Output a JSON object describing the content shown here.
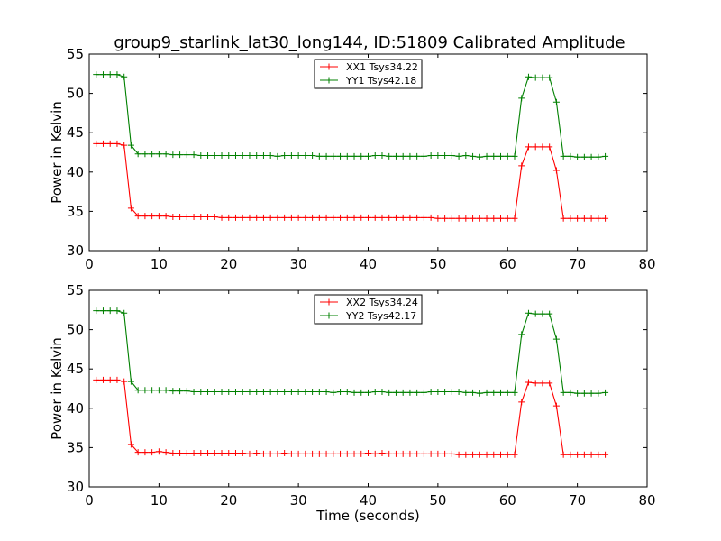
{
  "figure": {
    "title": "group9_starlink_lat30_long144, ID:51809 Calibrated Amplitude"
  },
  "colors": {
    "series1": "#ff0000",
    "series2": "#008000",
    "axes": "#000000",
    "background": "#ffffff"
  },
  "chart_data": [
    {
      "type": "line",
      "xlabel": "",
      "ylabel": "Power in Kelvin",
      "xlim": [
        0,
        80
      ],
      "ylim": [
        30,
        55
      ],
      "xticks": [
        0,
        10,
        20,
        30,
        40,
        50,
        60,
        70,
        80
      ],
      "yticks": [
        30,
        35,
        40,
        45,
        50,
        55
      ],
      "grid": false,
      "marker": "+",
      "legend_position": "top-center",
      "x": [
        1,
        2,
        3,
        4,
        5,
        6,
        7,
        8,
        9,
        10,
        11,
        12,
        13,
        14,
        15,
        16,
        17,
        18,
        19,
        20,
        21,
        22,
        23,
        24,
        25,
        26,
        27,
        28,
        29,
        30,
        31,
        32,
        33,
        34,
        35,
        36,
        37,
        38,
        39,
        40,
        41,
        42,
        43,
        44,
        45,
        46,
        47,
        48,
        49,
        50,
        51,
        52,
        53,
        54,
        55,
        56,
        57,
        58,
        59,
        60,
        61,
        62,
        63,
        64,
        65,
        66,
        67,
        68,
        69,
        70,
        71,
        72,
        73,
        74
      ],
      "series": [
        {
          "name": "XX1 Tsys34.22",
          "color": "#ff0000",
          "values": [
            43.6,
            43.6,
            43.6,
            43.6,
            43.4,
            35.4,
            34.4,
            34.4,
            34.4,
            34.4,
            34.4,
            34.3,
            34.3,
            34.3,
            34.3,
            34.3,
            34.3,
            34.3,
            34.2,
            34.2,
            34.2,
            34.2,
            34.2,
            34.2,
            34.2,
            34.2,
            34.2,
            34.2,
            34.2,
            34.2,
            34.2,
            34.2,
            34.2,
            34.2,
            34.2,
            34.2,
            34.2,
            34.2,
            34.2,
            34.2,
            34.2,
            34.2,
            34.2,
            34.2,
            34.2,
            34.2,
            34.2,
            34.2,
            34.2,
            34.1,
            34.1,
            34.1,
            34.1,
            34.1,
            34.1,
            34.1,
            34.1,
            34.1,
            34.1,
            34.1,
            34.1,
            40.8,
            43.2,
            43.2,
            43.2,
            43.2,
            40.2,
            34.1,
            34.1,
            34.1,
            34.1,
            34.1,
            34.1,
            34.1
          ]
        },
        {
          "name": "YY1 Tsys42.18",
          "color": "#008000",
          "values": [
            52.4,
            52.4,
            52.4,
            52.4,
            52.1,
            43.4,
            42.3,
            42.3,
            42.3,
            42.3,
            42.3,
            42.2,
            42.2,
            42.2,
            42.2,
            42.1,
            42.1,
            42.1,
            42.1,
            42.1,
            42.1,
            42.1,
            42.1,
            42.1,
            42.1,
            42.1,
            42.0,
            42.1,
            42.1,
            42.1,
            42.1,
            42.1,
            42.0,
            42.0,
            42.0,
            42.0,
            42.0,
            42.0,
            42.0,
            42.0,
            42.1,
            42.1,
            42.0,
            42.0,
            42.0,
            42.0,
            42.0,
            42.0,
            42.1,
            42.1,
            42.1,
            42.1,
            42.0,
            42.1,
            42.0,
            41.9,
            42.0,
            42.0,
            42.0,
            42.0,
            42.0,
            49.4,
            52.1,
            52.0,
            52.0,
            52.0,
            48.9,
            42.0,
            42.0,
            41.9,
            41.9,
            41.9,
            41.9,
            42.0
          ]
        }
      ]
    },
    {
      "type": "line",
      "xlabel": "Time (seconds)",
      "ylabel": "Power in Kelvin",
      "xlim": [
        0,
        80
      ],
      "ylim": [
        30,
        55
      ],
      "xticks": [
        0,
        10,
        20,
        30,
        40,
        50,
        60,
        70,
        80
      ],
      "yticks": [
        30,
        35,
        40,
        45,
        50,
        55
      ],
      "grid": false,
      "marker": "+",
      "legend_position": "top-center",
      "x": [
        1,
        2,
        3,
        4,
        5,
        6,
        7,
        8,
        9,
        10,
        11,
        12,
        13,
        14,
        15,
        16,
        17,
        18,
        19,
        20,
        21,
        22,
        23,
        24,
        25,
        26,
        27,
        28,
        29,
        30,
        31,
        32,
        33,
        34,
        35,
        36,
        37,
        38,
        39,
        40,
        41,
        42,
        43,
        44,
        45,
        46,
        47,
        48,
        49,
        50,
        51,
        52,
        53,
        54,
        55,
        56,
        57,
        58,
        59,
        60,
        61,
        62,
        63,
        64,
        65,
        66,
        67,
        68,
        69,
        70,
        71,
        72,
        73,
        74
      ],
      "series": [
        {
          "name": "XX2 Tsys34.24",
          "color": "#ff0000",
          "values": [
            43.6,
            43.6,
            43.6,
            43.6,
            43.4,
            35.4,
            34.4,
            34.4,
            34.4,
            34.5,
            34.4,
            34.3,
            34.3,
            34.3,
            34.3,
            34.3,
            34.3,
            34.3,
            34.3,
            34.3,
            34.3,
            34.3,
            34.2,
            34.3,
            34.2,
            34.2,
            34.2,
            34.3,
            34.2,
            34.2,
            34.2,
            34.2,
            34.2,
            34.2,
            34.2,
            34.2,
            34.2,
            34.2,
            34.2,
            34.3,
            34.2,
            34.3,
            34.2,
            34.2,
            34.2,
            34.2,
            34.2,
            34.2,
            34.2,
            34.2,
            34.2,
            34.2,
            34.1,
            34.1,
            34.1,
            34.1,
            34.1,
            34.1,
            34.1,
            34.1,
            34.1,
            40.8,
            43.3,
            43.2,
            43.2,
            43.2,
            40.3,
            34.1,
            34.1,
            34.1,
            34.1,
            34.1,
            34.1,
            34.1
          ]
        },
        {
          "name": "YY2 Tsys42.17",
          "color": "#008000",
          "values": [
            52.4,
            52.4,
            52.4,
            52.4,
            52.1,
            43.4,
            42.3,
            42.3,
            42.3,
            42.3,
            42.3,
            42.2,
            42.2,
            42.2,
            42.1,
            42.1,
            42.1,
            42.1,
            42.1,
            42.1,
            42.1,
            42.1,
            42.1,
            42.1,
            42.1,
            42.1,
            42.1,
            42.1,
            42.1,
            42.1,
            42.1,
            42.1,
            42.1,
            42.1,
            42.0,
            42.1,
            42.1,
            42.0,
            42.0,
            42.0,
            42.1,
            42.1,
            42.0,
            42.0,
            42.0,
            42.0,
            42.0,
            42.0,
            42.1,
            42.1,
            42.1,
            42.1,
            42.1,
            42.0,
            42.0,
            41.9,
            42.0,
            42.0,
            42.0,
            42.0,
            42.0,
            49.4,
            52.1,
            52.0,
            52.0,
            52.0,
            48.8,
            42.0,
            42.0,
            41.9,
            41.9,
            41.9,
            41.9,
            42.0
          ]
        }
      ]
    }
  ]
}
